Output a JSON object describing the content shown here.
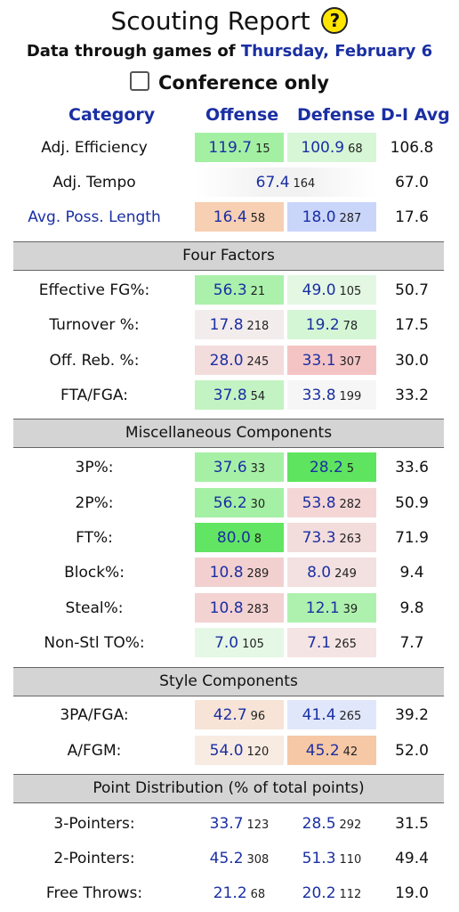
{
  "header": {
    "title": "Scouting Report",
    "help_glyph": "?",
    "subtitle_prefix": "Data through games of",
    "subtitle_date": "Thursday, February 6",
    "conference_label": "Conference only"
  },
  "columns": {
    "category": "Category",
    "offense": "Offense",
    "defense": "Defense",
    "d1avg": "D-I Avg"
  },
  "rows": [
    {
      "label": "Adj. Efficiency",
      "off": "119.7",
      "off_rank": "15",
      "def": "100.9",
      "def_rank": "68",
      "avg": "106.8"
    },
    {
      "label": "Adj. Tempo",
      "tempo": "67.4",
      "tempo_rank": "164",
      "avg": "67.0"
    },
    {
      "label": "Avg. Poss. Length",
      "off": "16.4",
      "off_rank": "58",
      "def": "18.0",
      "def_rank": "287",
      "avg": "17.6"
    }
  ],
  "sections": [
    {
      "title": "Four Factors",
      "rows": [
        {
          "label": "Effective FG%:",
          "off": "56.3",
          "off_rank": "21",
          "def": "49.0",
          "def_rank": "105",
          "avg": "50.7"
        },
        {
          "label": "Turnover %:",
          "off": "17.8",
          "off_rank": "218",
          "def": "19.2",
          "def_rank": "78",
          "avg": "17.5"
        },
        {
          "label": "Off. Reb. %:",
          "off": "28.0",
          "off_rank": "245",
          "def": "33.1",
          "def_rank": "307",
          "avg": "30.0"
        },
        {
          "label": "FTA/FGA:",
          "off": "37.8",
          "off_rank": "54",
          "def": "33.8",
          "def_rank": "199",
          "avg": "33.2"
        }
      ]
    },
    {
      "title": "Miscellaneous Components",
      "rows": [
        {
          "label": "3P%:",
          "off": "37.6",
          "off_rank": "33",
          "def": "28.2",
          "def_rank": "5",
          "avg": "33.6"
        },
        {
          "label": "2P%:",
          "off": "56.2",
          "off_rank": "30",
          "def": "53.8",
          "def_rank": "282",
          "avg": "50.9"
        },
        {
          "label": "FT%:",
          "off": "80.0",
          "off_rank": "8",
          "def": "73.3",
          "def_rank": "263",
          "avg": "71.9"
        },
        {
          "label": "Block%:",
          "off": "10.8",
          "off_rank": "289",
          "def": "8.0",
          "def_rank": "249",
          "avg": "9.4"
        },
        {
          "label": "Steal%:",
          "off": "10.8",
          "off_rank": "283",
          "def": "12.1",
          "def_rank": "39",
          "avg": "9.8"
        },
        {
          "label": "Non-Stl TO%:",
          "off": "7.0",
          "off_rank": "105",
          "def": "7.1",
          "def_rank": "265",
          "avg": "7.7"
        }
      ]
    },
    {
      "title": "Style Components",
      "rows": [
        {
          "label": "3PA/FGA:",
          "off": "42.7",
          "off_rank": "96",
          "def": "41.4",
          "def_rank": "265",
          "avg": "39.2"
        },
        {
          "label": "A/FGM:",
          "off": "54.0",
          "off_rank": "120",
          "def": "45.2",
          "def_rank": "42",
          "avg": "52.0"
        }
      ]
    },
    {
      "title": "Point Distribution (% of total points)",
      "rows": [
        {
          "label": "3-Pointers:",
          "off": "33.7",
          "off_rank": "123",
          "def": "28.5",
          "def_rank": "292",
          "avg": "31.5"
        },
        {
          "label": "2-Pointers:",
          "off": "45.2",
          "off_rank": "308",
          "def": "51.3",
          "def_rank": "110",
          "avg": "49.4"
        },
        {
          "label": "Free Throws:",
          "off": "21.2",
          "off_rank": "68",
          "def": "20.2",
          "def_rank": "112",
          "avg": "19.0"
        }
      ]
    }
  ],
  "colors": {
    "link_blue": "#1a2fa3",
    "strong_green": "#66e466",
    "green": "#a7f0a7",
    "light_green": "#d3f5d3",
    "neutral": "#f0f0f0",
    "light_red": "#f2dede",
    "red": "#f3c4c4",
    "light_orange": "#f8e4d8",
    "orange": "#f7c9a8",
    "light_blue": "#e0e6fb",
    "blue": "#c8d3fa",
    "section_gray": "#d4d4d4"
  }
}
